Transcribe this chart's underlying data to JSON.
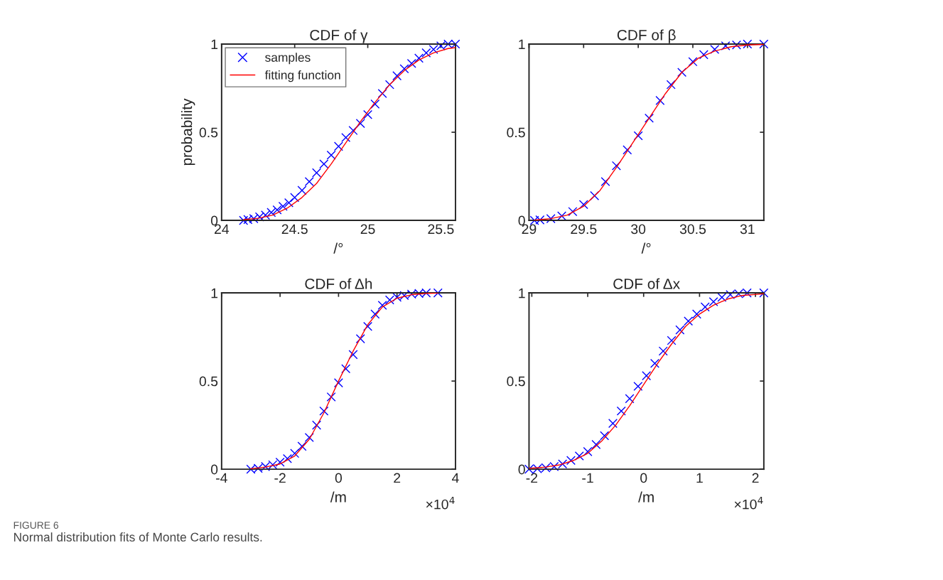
{
  "chart_data": [
    {
      "type": "scatter",
      "title": "CDF of γ",
      "xlabel": "/°",
      "ylabel": "probability",
      "xlim": [
        24,
        25.6
      ],
      "xticks": [
        24,
        24.5,
        25,
        25.5
      ],
      "ylim": [
        0,
        1
      ],
      "yticks": [
        0,
        0.5,
        1
      ],
      "legend": "top left",
      "grid": false,
      "series": [
        {
          "name": "samples",
          "marker": "cross",
          "color": "#0000ff",
          "x": [
            24.15,
            24.18,
            24.22,
            24.26,
            24.3,
            24.34,
            24.38,
            24.42,
            24.46,
            24.5,
            24.55,
            24.6,
            24.65,
            24.7,
            24.75,
            24.8,
            24.85,
            24.9,
            24.95,
            25.0,
            25.05,
            25.1,
            25.15,
            25.2,
            25.25,
            25.3,
            25.35,
            25.4,
            25.45,
            25.5,
            25.55,
            25.6
          ],
          "values": [
            0.0,
            0.005,
            0.01,
            0.02,
            0.03,
            0.045,
            0.06,
            0.08,
            0.1,
            0.13,
            0.17,
            0.22,
            0.27,
            0.32,
            0.37,
            0.42,
            0.47,
            0.51,
            0.55,
            0.6,
            0.66,
            0.72,
            0.77,
            0.82,
            0.86,
            0.89,
            0.92,
            0.95,
            0.97,
            0.99,
            1.0,
            1.0
          ]
        },
        {
          "name": "fitting function",
          "type": "line",
          "marker": "none",
          "line_style": "solid",
          "color": "#ff0000",
          "x": [
            24.15,
            24.25,
            24.35,
            24.45,
            24.55,
            24.65,
            24.75,
            24.85,
            24.95,
            25.05,
            25.15,
            25.25,
            25.35,
            25.45,
            25.55,
            25.6
          ],
          "values": [
            0.005,
            0.012,
            0.03,
            0.07,
            0.13,
            0.21,
            0.32,
            0.44,
            0.56,
            0.67,
            0.77,
            0.85,
            0.91,
            0.95,
            0.975,
            0.98
          ]
        }
      ]
    },
    {
      "type": "scatter",
      "title": "CDF of β",
      "xlabel": "/°",
      "xlim": [
        29,
        31.15
      ],
      "xticks": [
        29,
        29.5,
        30,
        30.5,
        31
      ],
      "ylim": [
        0,
        1
      ],
      "yticks": [
        0,
        0.5,
        1
      ],
      "grid": false,
      "series": [
        {
          "marker": "cross",
          "color": "#0000ff",
          "x": [
            29.05,
            29.1,
            29.2,
            29.3,
            29.4,
            29.5,
            29.6,
            29.7,
            29.8,
            29.9,
            30.0,
            30.1,
            30.2,
            30.3,
            30.4,
            30.5,
            30.6,
            30.7,
            30.8,
            30.9,
            31.0,
            31.15
          ],
          "values": [
            0,
            0.003,
            0.01,
            0.025,
            0.05,
            0.09,
            0.14,
            0.22,
            0.31,
            0.4,
            0.48,
            0.58,
            0.68,
            0.77,
            0.84,
            0.9,
            0.94,
            0.97,
            0.99,
            0.995,
            1.0,
            1.0
          ]
        },
        {
          "type": "line",
          "marker": "none",
          "line_style": "solid",
          "color": "#ff0000",
          "x": [
            29.05,
            29.2,
            29.35,
            29.5,
            29.65,
            29.8,
            29.95,
            30.1,
            30.25,
            30.4,
            30.55,
            30.7,
            30.85,
            31.0,
            31.15
          ],
          "values": [
            0.002,
            0.01,
            0.03,
            0.08,
            0.17,
            0.3,
            0.44,
            0.58,
            0.72,
            0.84,
            0.92,
            0.96,
            0.985,
            0.995,
            0.998
          ]
        }
      ]
    },
    {
      "type": "scatter",
      "title": "CDF of Δh",
      "xlabel": "/m",
      "xlim": [
        -4,
        4
      ],
      "xticks": [
        -4,
        -2,
        0,
        2,
        4
      ],
      "ylim": [
        0,
        1
      ],
      "yticks": [
        0,
        0.5,
        1
      ],
      "grid": false,
      "annotations": [
        "×10$^{4}$"
      ],
      "series": [
        {
          "marker": "cross",
          "color": "#0000ff",
          "x": [
            -3,
            -2.75,
            -2.5,
            -2.25,
            -2,
            -1.75,
            -1.5,
            -1.25,
            -1,
            -0.75,
            -0.5,
            -0.25,
            0,
            0.25,
            0.5,
            0.75,
            1,
            1.25,
            1.5,
            1.75,
            2,
            2.25,
            2.5,
            2.75,
            3,
            3.4
          ],
          "values": [
            0,
            0.005,
            0.015,
            0.025,
            0.04,
            0.06,
            0.09,
            0.13,
            0.18,
            0.25,
            0.33,
            0.41,
            0.49,
            0.57,
            0.65,
            0.74,
            0.81,
            0.88,
            0.93,
            0.96,
            0.975,
            0.985,
            0.993,
            0.997,
            1.0,
            1.0
          ]
        },
        {
          "type": "line",
          "marker": "none",
          "line_style": "solid",
          "color": "#ff0000",
          "x": [
            -3,
            -2.5,
            -2,
            -1.5,
            -1,
            -0.5,
            0,
            0.5,
            1,
            1.5,
            2,
            2.5,
            3,
            3.4
          ],
          "values": [
            0.003,
            0.012,
            0.03,
            0.075,
            0.17,
            0.32,
            0.5,
            0.67,
            0.82,
            0.92,
            0.97,
            0.99,
            0.997,
            0.999
          ]
        }
      ]
    },
    {
      "type": "scatter",
      "title": "CDF of Δx",
      "xlabel": "/m",
      "xlim": [
        -2.05,
        2.15
      ],
      "xticks": [
        -2,
        -1,
        0,
        1,
        2
      ],
      "ylim": [
        0,
        1
      ],
      "yticks": [
        0,
        0.5,
        1
      ],
      "grid": false,
      "annotations": [
        "×10$^{4}$",
        "FIGURE 6",
        "Normal distribution fits of Monte Carlo results."
      ],
      "series": [
        {
          "marker": "cross",
          "color": "#0000ff",
          "x": [
            -2.05,
            -1.9,
            -1.75,
            -1.6,
            -1.45,
            -1.3,
            -1.15,
            -1,
            -0.85,
            -0.7,
            -0.55,
            -0.4,
            -0.25,
            -0.1,
            0.05,
            0.2,
            0.35,
            0.5,
            0.65,
            0.8,
            0.95,
            1.1,
            1.25,
            1.4,
            1.55,
            1.7,
            1.85,
            2.15
          ],
          "values": [
            0,
            0.003,
            0.008,
            0.015,
            0.03,
            0.05,
            0.075,
            0.1,
            0.14,
            0.19,
            0.26,
            0.33,
            0.4,
            0.47,
            0.53,
            0.6,
            0.67,
            0.73,
            0.79,
            0.84,
            0.88,
            0.92,
            0.95,
            0.975,
            0.99,
            0.995,
            1.0,
            1.0
          ]
        },
        {
          "type": "line",
          "marker": "none",
          "line_style": "solid",
          "color": "#ff0000",
          "x": [
            -2.05,
            -1.75,
            -1.5,
            -1.25,
            -1,
            -0.75,
            -0.5,
            -0.25,
            0,
            0.25,
            0.5,
            0.75,
            1,
            1.25,
            1.5,
            1.75,
            2.15
          ],
          "values": [
            0.005,
            0.012,
            0.025,
            0.05,
            0.09,
            0.16,
            0.25,
            0.36,
            0.48,
            0.6,
            0.71,
            0.81,
            0.88,
            0.93,
            0.965,
            0.985,
            0.995
          ]
        }
      ]
    }
  ]
}
